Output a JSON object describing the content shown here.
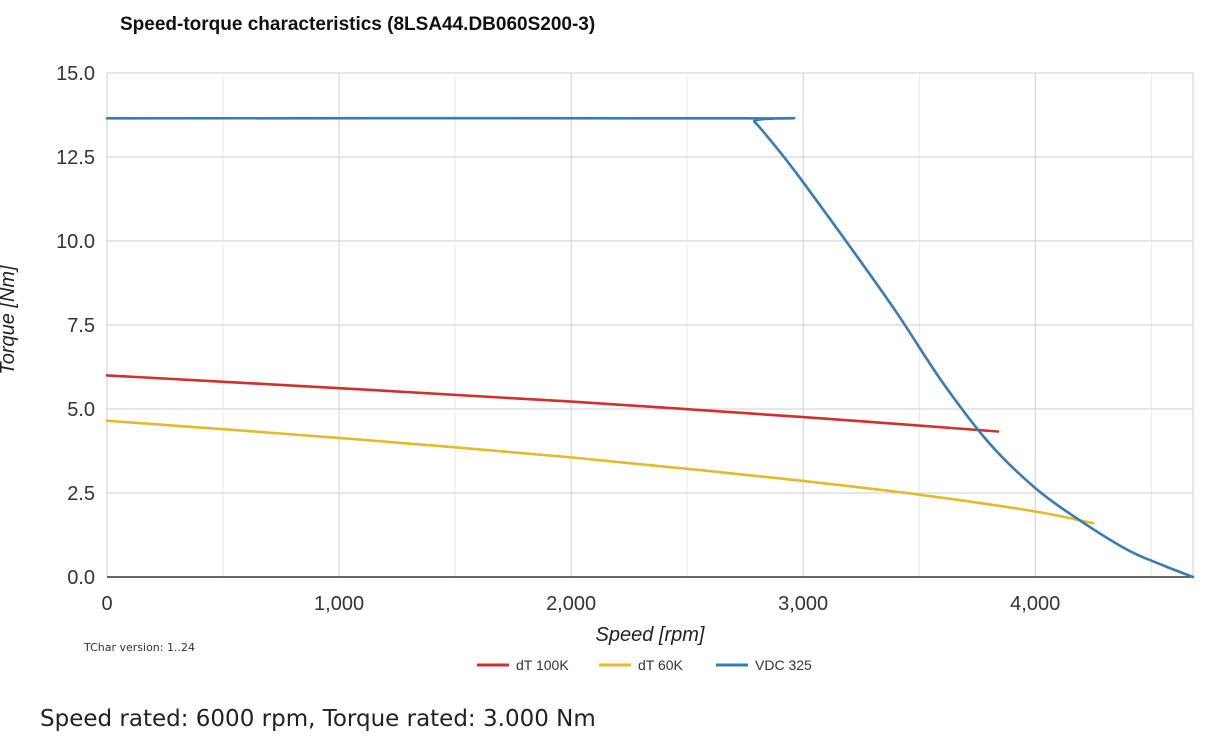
{
  "chart_data": {
    "type": "line",
    "title": "Speed-torque characteristics (8LSA44.DB060S200-3)",
    "xlabel": "Speed [rpm]",
    "ylabel": "Torque [Nm]",
    "xlim": [
      0,
      4680
    ],
    "ylim": [
      0,
      15
    ],
    "grid": true,
    "x_ticks": [
      0,
      1000,
      2000,
      3000,
      4000
    ],
    "x_tick_labels": [
      "0",
      "1,000",
      "2,000",
      "3,000",
      "4,000"
    ],
    "x_minor_grid": [
      500,
      1500,
      2500,
      3500,
      4500
    ],
    "y_ticks": [
      0,
      2.5,
      5,
      7.5,
      10,
      12.5,
      15
    ],
    "y_tick_labels": [
      "0.0",
      "2.5",
      "5.0",
      "7.5",
      "10.0",
      "12.5",
      "15.0"
    ],
    "legend_position": "bottom-center",
    "series": [
      {
        "name": "dT 100K",
        "color": "#d32f2f",
        "x": [
          0,
          1000,
          2000,
          3000,
          3840
        ],
        "y": [
          6.0,
          5.62,
          5.22,
          4.76,
          4.33
        ]
      },
      {
        "name": "dT 60K",
        "color": "#e3bb2a",
        "x": [
          0,
          500,
          1000,
          1500,
          2000,
          2500,
          3000,
          3500,
          4000,
          4250
        ],
        "y": [
          4.65,
          4.4,
          4.14,
          3.86,
          3.56,
          3.22,
          2.86,
          2.45,
          1.95,
          1.6
        ]
      },
      {
        "name": "VDC 325",
        "color": "#3b7bb5",
        "x": [
          0,
          2750,
          2790,
          2900,
          3000,
          3200,
          3400,
          3600,
          3800,
          4000,
          4200,
          4400,
          4550,
          4680
        ],
        "y": [
          13.65,
          13.65,
          13.55,
          12.65,
          11.75,
          9.85,
          7.9,
          5.8,
          4.0,
          2.65,
          1.65,
          0.8,
          0.35,
          0.0
        ]
      }
    ]
  },
  "meta": {
    "version_text": "TChar version: 1..24",
    "footer_text": "Speed rated: 6000 rpm, Torque rated: 3.000 Nm"
  }
}
